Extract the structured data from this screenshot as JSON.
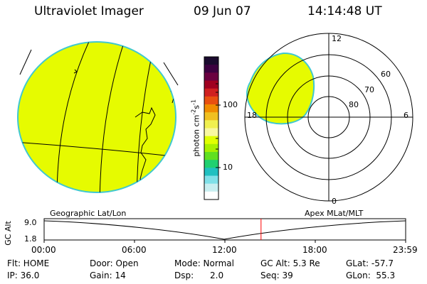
{
  "header": {
    "instrument": "Ultraviolet Imager",
    "date": "09 Jun 07",
    "time": "14:14:48 UT"
  },
  "colorbar": {
    "unit_label": "photon cm",
    "unit_sup1": "-2",
    "unit_mid": "s",
    "unit_sup2": "-1",
    "tick_100": "100",
    "tick_10": "10",
    "colors": [
      "#1a0a2e",
      "#3c0040",
      "#6a0040",
      "#a00020",
      "#d02020",
      "#e85010",
      "#f08c00",
      "#f0c020",
      "#f0f050",
      "#f8f8a0",
      "#e0ff00",
      "#a8f000",
      "#60e020",
      "#20d070",
      "#20c0c0",
      "#80e0e8",
      "#c8eef0",
      "#ffffff"
    ]
  },
  "polar": {
    "label_12": "12",
    "label_0": "0",
    "label_18": "18",
    "label_6": "6",
    "label_60": "60",
    "label_70": "70",
    "label_80": "80"
  },
  "panel_labels": {
    "geographic": "Geographic Lat/Lon",
    "apex": "Apex MLat/MLT"
  },
  "altitude_plot": {
    "axis_title": "GC Alt",
    "y_top": "9.0",
    "y_bottom": "1.8",
    "x_ticks": [
      "00:00",
      "06:00",
      "12:00",
      "18:00",
      "23:59"
    ],
    "current_fraction": 0.6
  },
  "footer": {
    "flt": "Flt: HOME",
    "door": "Door: Open",
    "mode": "Mode: Normal",
    "gc_alt": "GC Alt: 5.3 Re",
    "glat": "GLat: -57.7",
    "ip": "IP: 36.0",
    "gain": "Gain: 14",
    "dsp": "Dsp:      2.0",
    "seq": "Seq: 39",
    "glon": "GLon:  55.3"
  },
  "colors": {
    "image_fill": "#e6fb00",
    "image_edge": "#40c8d0",
    "marker": "#ff0000"
  }
}
